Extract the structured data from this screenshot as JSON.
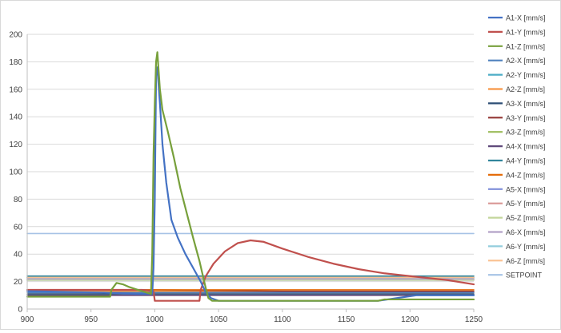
{
  "chart_data": {
    "type": "line",
    "title": "",
    "xlabel": "",
    "ylabel": "",
    "xlim": [
      900,
      1250
    ],
    "ylim": [
      0,
      200
    ],
    "x_ticks": [
      900,
      950,
      1000,
      1050,
      1100,
      1150,
      1200,
      1250
    ],
    "y_ticks": [
      0,
      20,
      40,
      60,
      80,
      100,
      120,
      140,
      160,
      180,
      200
    ],
    "grid": "horizontal",
    "legend_position": "right",
    "series": [
      {
        "name": "A1-X [mm/s]",
        "color": "#4472c4",
        "points": [
          [
            900,
            13
          ],
          [
            960,
            12
          ],
          [
            985,
            11
          ],
          [
            998,
            11
          ],
          [
            999,
            30
          ],
          [
            1000,
            80
          ],
          [
            1001,
            170
          ],
          [
            1002,
            176
          ],
          [
            1004,
            150
          ],
          [
            1006,
            120
          ],
          [
            1009,
            92
          ],
          [
            1013,
            65
          ],
          [
            1018,
            52
          ],
          [
            1024,
            40
          ],
          [
            1030,
            30
          ],
          [
            1036,
            20
          ],
          [
            1040,
            12
          ],
          [
            1044,
            8
          ],
          [
            1050,
            6
          ],
          [
            1100,
            6
          ],
          [
            1150,
            6
          ],
          [
            1175,
            6
          ],
          [
            1190,
            8
          ],
          [
            1205,
            10
          ],
          [
            1250,
            10
          ]
        ]
      },
      {
        "name": "A1-Y [mm/s]",
        "color": "#c0504d",
        "points": [
          [
            900,
            14
          ],
          [
            960,
            14
          ],
          [
            990,
            14
          ],
          [
            999,
            13
          ],
          [
            1000,
            6
          ],
          [
            1035,
            6
          ],
          [
            1036,
            14
          ],
          [
            1040,
            24
          ],
          [
            1046,
            33
          ],
          [
            1055,
            42
          ],
          [
            1065,
            48
          ],
          [
            1075,
            50
          ],
          [
            1085,
            49
          ],
          [
            1100,
            44
          ],
          [
            1120,
            38
          ],
          [
            1140,
            33
          ],
          [
            1160,
            29
          ],
          [
            1180,
            26
          ],
          [
            1200,
            24
          ],
          [
            1230,
            21
          ],
          [
            1250,
            18
          ]
        ]
      },
      {
        "name": "A1-Z [mm/s]",
        "color": "#77a03b",
        "points": [
          [
            900,
            9
          ],
          [
            940,
            9
          ],
          [
            960,
            9
          ],
          [
            965,
            9
          ],
          [
            966,
            14
          ],
          [
            970,
            19
          ],
          [
            975,
            18
          ],
          [
            980,
            16
          ],
          [
            990,
            13
          ],
          [
            997,
            11
          ],
          [
            998,
            40
          ],
          [
            999,
            112
          ],
          [
            1000,
            150
          ],
          [
            1001,
            180
          ],
          [
            1002,
            187
          ],
          [
            1004,
            160
          ],
          [
            1006,
            145
          ],
          [
            1010,
            130
          ],
          [
            1015,
            110
          ],
          [
            1020,
            88
          ],
          [
            1025,
            70
          ],
          [
            1030,
            52
          ],
          [
            1035,
            35
          ],
          [
            1040,
            15
          ],
          [
            1042,
            8
          ],
          [
            1045,
            6
          ],
          [
            1100,
            6
          ],
          [
            1150,
            6
          ],
          [
            1175,
            6
          ],
          [
            1180,
            7
          ],
          [
            1250,
            7
          ]
        ]
      },
      {
        "name": "A2-X [mm/s]",
        "color": "#4f81bd",
        "points": [
          [
            900,
            12
          ],
          [
            1000,
            12
          ],
          [
            1100,
            12
          ],
          [
            1200,
            12
          ],
          [
            1250,
            12
          ]
        ]
      },
      {
        "name": "A2-Y [mm/s]",
        "color": "#4bacc6",
        "points": [
          [
            900,
            23
          ],
          [
            1000,
            23
          ],
          [
            1100,
            23
          ],
          [
            1200,
            23
          ],
          [
            1250,
            23
          ]
        ]
      },
      {
        "name": "A2-Z [mm/s]",
        "color": "#f79646",
        "points": [
          [
            900,
            13
          ],
          [
            1000,
            13
          ],
          [
            1100,
            13
          ],
          [
            1200,
            13
          ],
          [
            1250,
            13
          ]
        ]
      },
      {
        "name": "A3-X [mm/s]",
        "color": "#2c4d75",
        "points": [
          [
            900,
            11
          ],
          [
            1000,
            11
          ],
          [
            1100,
            11
          ],
          [
            1200,
            11
          ],
          [
            1250,
            11
          ]
        ]
      },
      {
        "name": "A3-Y [mm/s]",
        "color": "#943634",
        "points": [
          [
            900,
            14
          ],
          [
            1000,
            14
          ],
          [
            1100,
            13
          ],
          [
            1200,
            13
          ],
          [
            1250,
            13
          ]
        ]
      },
      {
        "name": "A3-Z [mm/s]",
        "color": "#9bbb59",
        "points": [
          [
            900,
            22
          ],
          [
            1000,
            22
          ],
          [
            1100,
            22
          ],
          [
            1200,
            22
          ],
          [
            1250,
            22
          ]
        ]
      },
      {
        "name": "A4-X [mm/s]",
        "color": "#5f497a",
        "points": [
          [
            900,
            10
          ],
          [
            1000,
            10
          ],
          [
            1100,
            10
          ],
          [
            1200,
            10
          ],
          [
            1250,
            10
          ]
        ]
      },
      {
        "name": "A4-Y [mm/s]",
        "color": "#31859c",
        "points": [
          [
            900,
            24
          ],
          [
            1000,
            24
          ],
          [
            1100,
            24
          ],
          [
            1200,
            24
          ],
          [
            1250,
            24
          ]
        ]
      },
      {
        "name": "A4-Z [mm/s]",
        "color": "#e46c0a",
        "points": [
          [
            900,
            14
          ],
          [
            1000,
            14
          ],
          [
            1100,
            14
          ],
          [
            1200,
            14
          ],
          [
            1250,
            14
          ]
        ]
      },
      {
        "name": "A5-X [mm/s]",
        "color": "#7f8fd9",
        "points": [
          [
            900,
            21
          ],
          [
            1000,
            21
          ],
          [
            1100,
            21
          ],
          [
            1200,
            21
          ],
          [
            1250,
            21
          ]
        ]
      },
      {
        "name": "A5-Y [mm/s]",
        "color": "#d99694",
        "points": [
          [
            900,
            22
          ],
          [
            1000,
            22
          ],
          [
            1100,
            22
          ],
          [
            1200,
            22
          ],
          [
            1250,
            22
          ]
        ]
      },
      {
        "name": "A5-Z [mm/s]",
        "color": "#c3d69b",
        "points": [
          [
            900,
            21
          ],
          [
            1000,
            21
          ],
          [
            1100,
            21
          ],
          [
            1200,
            21
          ],
          [
            1250,
            21
          ]
        ]
      },
      {
        "name": "A6-X [mm/s]",
        "color": "#b3a2c7",
        "points": [
          [
            900,
            22
          ],
          [
            1000,
            22
          ],
          [
            1100,
            22
          ],
          [
            1200,
            22
          ],
          [
            1250,
            22
          ]
        ]
      },
      {
        "name": "A6-Y [mm/s]",
        "color": "#93cddd",
        "points": [
          [
            900,
            23
          ],
          [
            1000,
            23
          ],
          [
            1100,
            23
          ],
          [
            1200,
            23
          ],
          [
            1250,
            23
          ]
        ]
      },
      {
        "name": "A6-Z [mm/s]",
        "color": "#fac090",
        "points": [
          [
            900,
            23
          ],
          [
            1000,
            23
          ],
          [
            1100,
            23
          ],
          [
            1200,
            23
          ],
          [
            1250,
            23
          ]
        ]
      },
      {
        "name": "SETPOINT",
        "color": "#a6c3e6",
        "points": [
          [
            900,
            55
          ],
          [
            1000,
            55
          ],
          [
            1100,
            55
          ],
          [
            1200,
            55
          ],
          [
            1250,
            55
          ]
        ]
      }
    ]
  }
}
